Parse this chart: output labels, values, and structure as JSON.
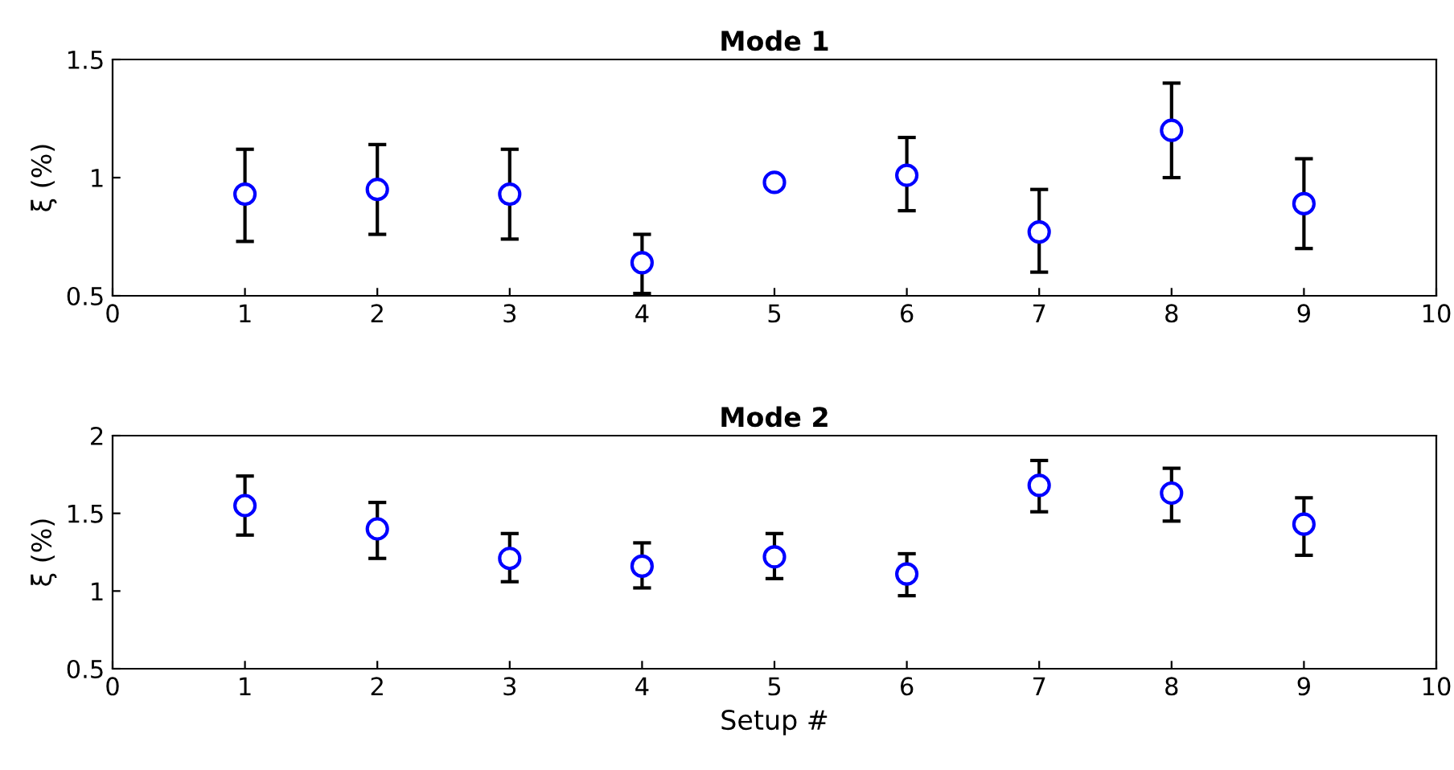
{
  "chart_data": [
    {
      "type": "scatter",
      "title": "Mode 1",
      "ylabel": "ξ (%)",
      "x": [
        1,
        2,
        3,
        4,
        5,
        6,
        7,
        8,
        9
      ],
      "series": [
        {
          "color": "#0000ff",
          "values": [
            0.93,
            0.95,
            0.93,
            0.64,
            0.98,
            1.01,
            0.77,
            1.2,
            0.89
          ],
          "errors": [
            [
              0.73,
              1.12
            ],
            [
              0.76,
              1.14
            ],
            [
              0.74,
              1.12
            ],
            [
              0.51,
              0.76
            ],
            [
              0.97,
              0.99
            ],
            [
              0.86,
              1.17
            ],
            [
              0.6,
              0.95
            ],
            [
              1.0,
              1.4
            ],
            [
              0.7,
              1.08
            ]
          ]
        }
      ],
      "marker": "circle",
      "xlim": [
        0,
        10
      ],
      "xticks": [
        0,
        1,
        2,
        3,
        4,
        5,
        6,
        7,
        8,
        9,
        10
      ],
      "ylim": [
        0.5,
        1.5
      ],
      "yticks": [
        0.5,
        1,
        1.5
      ],
      "grid": false,
      "legend": false
    },
    {
      "type": "scatter",
      "title": "Mode 2",
      "xlabel": "Setup #",
      "ylabel": "ξ (%)",
      "x": [
        1,
        2,
        3,
        4,
        5,
        6,
        7,
        8,
        9
      ],
      "series": [
        {
          "color": "#0000ff",
          "values": [
            1.55,
            1.4,
            1.21,
            1.16,
            1.22,
            1.11,
            1.68,
            1.63,
            1.43
          ],
          "errors": [
            [
              1.36,
              1.74
            ],
            [
              1.21,
              1.57
            ],
            [
              1.06,
              1.37
            ],
            [
              1.02,
              1.31
            ],
            [
              1.08,
              1.37
            ],
            [
              0.97,
              1.24
            ],
            [
              1.51,
              1.84
            ],
            [
              1.45,
              1.79
            ],
            [
              1.23,
              1.6
            ]
          ]
        }
      ],
      "marker": "circle",
      "xlim": [
        0,
        10
      ],
      "xticks": [
        0,
        1,
        2,
        3,
        4,
        5,
        6,
        7,
        8,
        9,
        10
      ],
      "ylim": [
        0.5,
        2
      ],
      "yticks": [
        0.5,
        1,
        1.5,
        2
      ],
      "grid": false,
      "legend": false
    }
  ]
}
